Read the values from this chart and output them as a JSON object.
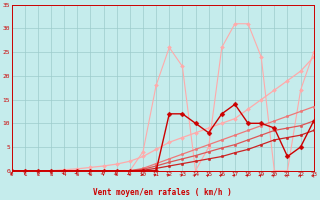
{
  "xlabel": "Vent moyen/en rafales ( km/h )",
  "xlim": [
    0,
    23
  ],
  "ylim": [
    0,
    35
  ],
  "xticks": [
    0,
    1,
    2,
    3,
    4,
    5,
    6,
    7,
    8,
    9,
    10,
    11,
    12,
    13,
    14,
    15,
    16,
    17,
    18,
    19,
    20,
    21,
    22,
    23
  ],
  "yticks": [
    0,
    5,
    10,
    15,
    20,
    25,
    30,
    35
  ],
  "bg_color": "#c5ecec",
  "grid_color": "#9dcccc",
  "lines": [
    {
      "x": [
        0,
        1,
        2,
        3,
        4,
        5,
        6,
        7,
        8,
        9,
        10,
        11,
        12,
        13,
        14,
        15,
        16,
        17,
        18,
        19,
        20,
        21,
        22,
        23
      ],
      "y": [
        0,
        0,
        0,
        0,
        0,
        0,
        0,
        0,
        0,
        0,
        4,
        18,
        26,
        22,
        0,
        5,
        26,
        31,
        31,
        24,
        0,
        0,
        17,
        25
      ],
      "color": "#ffaaaa",
      "lw": 0.8,
      "marker": "D",
      "ms": 2.0,
      "zorder": 2
    },
    {
      "x": [
        0,
        1,
        2,
        3,
        4,
        5,
        6,
        7,
        8,
        9,
        10,
        11,
        12,
        13,
        14,
        15,
        16,
        17,
        18,
        19,
        20,
        21,
        22,
        23
      ],
      "y": [
        0,
        0,
        0,
        0,
        0.2,
        0.4,
        0.7,
        1.0,
        1.4,
        2.0,
        3,
        4.5,
        6,
        7,
        8,
        9,
        10,
        11,
        13,
        15,
        17,
        19,
        21,
        24
      ],
      "color": "#ffaaaa",
      "lw": 0.9,
      "marker": "D",
      "ms": 2.0,
      "zorder": 2
    },
    {
      "x": [
        0,
        1,
        2,
        3,
        4,
        5,
        6,
        7,
        8,
        9,
        10,
        11,
        12,
        13,
        14,
        15,
        16,
        17,
        18,
        19,
        20,
        21,
        22,
        23
      ],
      "y": [
        0,
        0,
        0,
        0,
        0,
        0,
        0,
        0,
        0,
        0,
        0.5,
        1.5,
        2.5,
        3.5,
        4.5,
        5.5,
        6.5,
        7.5,
        8.5,
        9.5,
        10.5,
        11.5,
        12.5,
        13.5
      ],
      "color": "#ee7777",
      "lw": 0.9,
      "marker": "o",
      "ms": 1.8,
      "zorder": 3
    },
    {
      "x": [
        0,
        1,
        2,
        3,
        4,
        5,
        6,
        7,
        8,
        9,
        10,
        11,
        12,
        13,
        14,
        15,
        16,
        17,
        18,
        19,
        20,
        21,
        22,
        23
      ],
      "y": [
        0,
        0,
        0,
        0,
        0,
        0,
        0,
        0,
        0,
        0,
        0.3,
        1.0,
        1.8,
        2.5,
        3.2,
        4.0,
        4.8,
        5.5,
        6.5,
        7.5,
        8.5,
        9.0,
        9.5,
        10.5
      ],
      "color": "#dd5555",
      "lw": 0.9,
      "marker": "o",
      "ms": 1.8,
      "zorder": 3
    },
    {
      "x": [
        0,
        1,
        2,
        3,
        4,
        5,
        6,
        7,
        8,
        9,
        10,
        11,
        12,
        13,
        14,
        15,
        16,
        17,
        18,
        19,
        20,
        21,
        22,
        23
      ],
      "y": [
        0,
        0,
        0,
        0,
        0,
        0,
        0,
        0,
        0,
        0,
        0.1,
        0.5,
        1.0,
        1.5,
        2.0,
        2.5,
        3.0,
        3.8,
        4.5,
        5.5,
        6.5,
        7.0,
        7.5,
        8.5
      ],
      "color": "#cc2222",
      "lw": 0.9,
      "marker": "o",
      "ms": 1.8,
      "zorder": 4
    },
    {
      "x": [
        0,
        1,
        2,
        3,
        4,
        5,
        6,
        7,
        8,
        9,
        10,
        11,
        12,
        13,
        14,
        15,
        16,
        17,
        18,
        19,
        20,
        21,
        22,
        23
      ],
      "y": [
        0,
        0,
        0,
        0,
        0,
        0,
        0,
        0,
        0,
        0,
        0,
        0,
        12,
        12,
        10,
        8,
        12,
        14,
        10,
        10,
        9,
        3,
        5,
        10.5
      ],
      "color": "#cc0000",
      "lw": 1.0,
      "marker": "D",
      "ms": 2.5,
      "zorder": 5
    }
  ],
  "arrow_color": "#cc0000",
  "arrow_angles": [
    0,
    0,
    0,
    0,
    30,
    40,
    45,
    50,
    55,
    60,
    90,
    110,
    120,
    125,
    130,
    135,
    135,
    140,
    140,
    145,
    150,
    155,
    160,
    165
  ]
}
